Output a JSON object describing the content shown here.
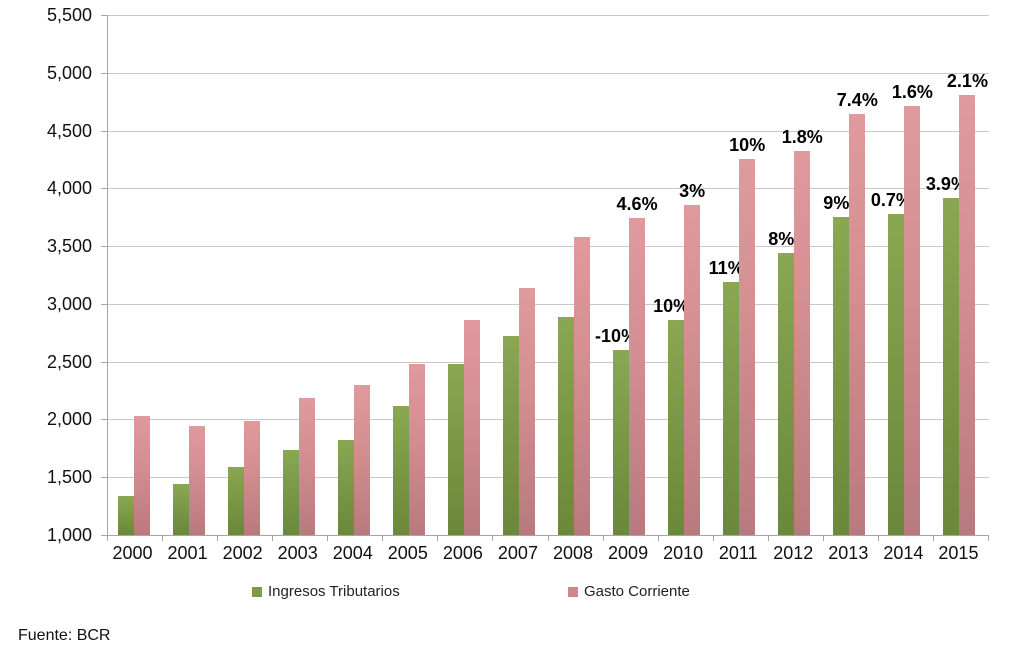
{
  "chart_data": {
    "type": "bar",
    "title": "",
    "categories": [
      "2000",
      "2001",
      "2002",
      "2003",
      "2004",
      "2005",
      "2006",
      "2007",
      "2008",
      "2009",
      "2010",
      "2011",
      "2012",
      "2013",
      "2014",
      "2015"
    ],
    "series": [
      {
        "name": "Ingresos Tributarios",
        "key": "ingresos-tributarios",
        "color": "#7C9A47",
        "values": [
          1340,
          1440,
          1590,
          1740,
          1820,
          2120,
          2480,
          2720,
          2890,
          2600,
          2860,
          3190,
          3440,
          3750,
          3780,
          3920
        ],
        "point_labels": [
          null,
          null,
          null,
          null,
          null,
          null,
          null,
          null,
          null,
          "-10%",
          "10%",
          "11%",
          "8%",
          "9%",
          "0.7%",
          "3.9%"
        ]
      },
      {
        "name": "Gasto Corriente",
        "key": "gasto-corriente",
        "color": "#CE888C",
        "values": [
          2030,
          1940,
          1990,
          2190,
          2300,
          2480,
          2860,
          3140,
          3580,
          3740,
          3860,
          4250,
          4320,
          4640,
          4710,
          4810
        ],
        "point_labels": [
          null,
          null,
          null,
          null,
          null,
          null,
          null,
          null,
          null,
          "4.6%",
          "3%",
          "10%",
          "1.8%",
          "7.4%",
          "1.6%",
          "2.1%"
        ]
      }
    ],
    "xlabel": "",
    "ylabel": "",
    "ylim": [
      1000,
      5500
    ],
    "ytick_step": 500,
    "y_tick_labels": [
      "1,000",
      "1,500",
      "2,000",
      "2,500",
      "3,000",
      "3,500",
      "4,000",
      "4,500",
      "5,000",
      "5,500"
    ],
    "grid": true,
    "legend_position": "bottom"
  },
  "footer": {
    "source": "Fuente: BCR"
  }
}
